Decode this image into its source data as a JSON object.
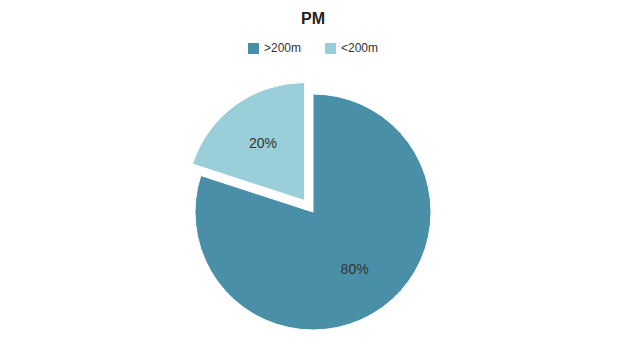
{
  "chart_data": {
    "type": "pie",
    "title": "PM",
    "categories": [
      ">200m",
      "<200m"
    ],
    "values": [
      80,
      20
    ],
    "value_labels": [
      "80%",
      "20%"
    ],
    "colors": [
      "#4a8fa8",
      "#9acfda"
    ],
    "data_labels": true,
    "legend": "top"
  }
}
